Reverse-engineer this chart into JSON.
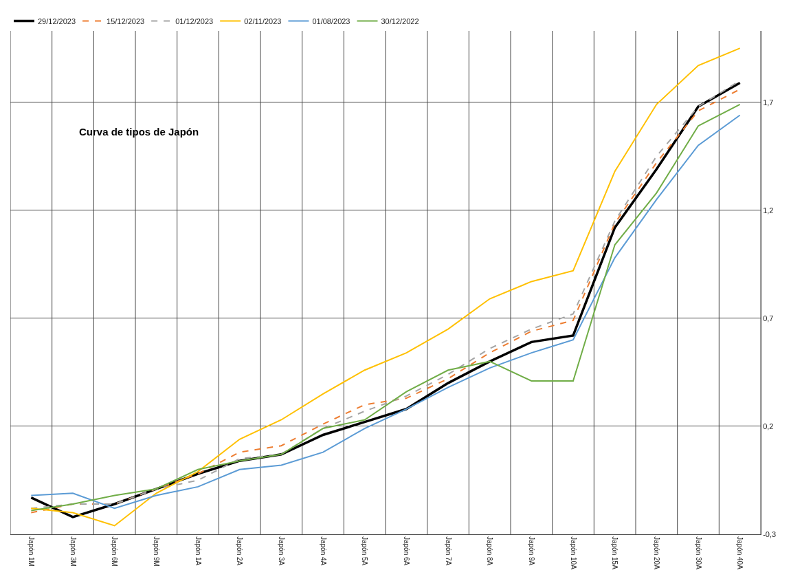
{
  "chart_data": {
    "type": "line",
    "title": "Curva de tipos de Japón",
    "categories": [
      "Japón 1M",
      "Japón 3M",
      "Japón 6M",
      "Japón 9M",
      "Japón 1A",
      "Japón 2A",
      "Japón 3A",
      "Japón 4A",
      "Japón 5A",
      "Japón 6A",
      "Japón 7A",
      "Japón 8A",
      "Japón 9A",
      "Japón 10A",
      "Japón 15A",
      "Japón 20A",
      "Japón 30A",
      "Japón 40A"
    ],
    "series": [
      {
        "name": "29/12/2023",
        "color": "#000000",
        "line_style": "solid",
        "values": [
          -0.13,
          -0.22,
          -0.16,
          -0.09,
          -0.02,
          0.04,
          0.07,
          0.16,
          0.22,
          0.28,
          0.4,
          0.5,
          0.59,
          0.62,
          1.12,
          1.39,
          1.68,
          1.79
        ]
      },
      {
        "name": "15/12/2023",
        "color": "#ed7d31",
        "line_style": "dashed",
        "values": [
          -0.2,
          -0.16,
          -0.16,
          -0.09,
          -0.02,
          0.08,
          0.11,
          0.21,
          0.3,
          0.33,
          0.42,
          0.54,
          0.64,
          0.69,
          1.14,
          1.42,
          1.66,
          1.76
        ]
      },
      {
        "name": "01/12/2023",
        "color": "#a5a5a5",
        "line_style": "dashed",
        "values": [
          -0.18,
          -0.16,
          -0.16,
          -0.09,
          -0.05,
          0.05,
          0.07,
          0.19,
          0.27,
          0.34,
          0.44,
          0.56,
          0.65,
          0.72,
          1.15,
          1.45,
          1.68,
          1.8
        ]
      },
      {
        "name": "02/11/2023",
        "color": "#ffc000",
        "line_style": "solid",
        "values": [
          -0.18,
          -0.2,
          -0.26,
          -0.11,
          -0.01,
          0.14,
          0.23,
          0.35,
          0.46,
          0.54,
          0.65,
          0.79,
          0.87,
          0.92,
          1.38,
          1.69,
          1.87,
          1.95
        ]
      },
      {
        "name": "01/08/2023",
        "color": "#5b9bd5",
        "line_style": "solid",
        "values": [
          -0.12,
          -0.11,
          -0.18,
          -0.12,
          -0.08,
          0.0,
          0.02,
          0.08,
          0.19,
          0.28,
          0.38,
          0.47,
          0.54,
          0.6,
          0.98,
          1.25,
          1.5,
          1.64
        ]
      },
      {
        "name": "30/12/2022",
        "color": "#70ad47",
        "line_style": "solid",
        "values": [
          -0.19,
          -0.16,
          -0.12,
          -0.09,
          0.0,
          0.04,
          0.07,
          0.19,
          0.23,
          0.36,
          0.46,
          0.5,
          0.41,
          0.41,
          1.04,
          1.28,
          1.59,
          1.69
        ]
      }
    ],
    "ylim": [
      -0.3,
      2.03
    ],
    "yticks": [
      {
        "value": -0.3,
        "label": "-0,3"
      },
      {
        "value": 0.2,
        "label": "0,2"
      },
      {
        "value": 0.7,
        "label": "0,7"
      },
      {
        "value": 1.2,
        "label": "1,2"
      },
      {
        "value": 1.7,
        "label": "1,7"
      }
    ],
    "grid": true,
    "legend": "top",
    "marker": "none"
  }
}
